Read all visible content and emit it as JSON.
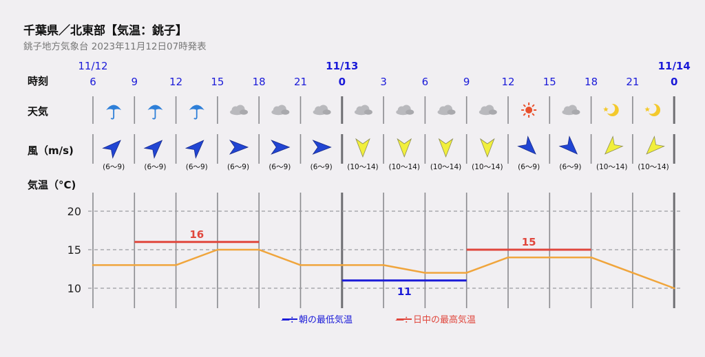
{
  "header": {
    "title": "千葉県／北東部【気温：銚子】",
    "subtitle": "銚子地方気象台 2023年11月12日07時発表"
  },
  "row_labels": {
    "time": "時刻",
    "weather": "天気",
    "wind": "風（m/s)",
    "temp": "気温（°C)"
  },
  "colors": {
    "line": "#f0a53c",
    "max": "#e0463c",
    "min": "#1a1ad8",
    "time": "#1a1ad8",
    "rain_icon": "#2e7fd8",
    "cloud_icon": "#b9b9bd",
    "sun_icon": "#e8502c",
    "moon_icon": "#f3c92d",
    "wind_blue": "#2145d3",
    "wind_yellow": "#f1ef3c"
  },
  "legend": {
    "min_label": "—：朝の最低気温",
    "max_label": "—：日中の最高気温"
  },
  "chart_data": {
    "type": "line",
    "x": [
      "11/12 6",
      "11/12 9",
      "11/12 12",
      "11/12 15",
      "11/12 18",
      "11/12 21",
      "11/13 0",
      "11/13 3",
      "11/13 6",
      "11/13 9",
      "11/13 12",
      "11/13 15",
      "11/13 18",
      "11/13 21",
      "11/14 0"
    ],
    "hour_labels": [
      "6",
      "9",
      "12",
      "15",
      "18",
      "21",
      "0",
      "3",
      "6",
      "9",
      "12",
      "15",
      "18",
      "21",
      "0"
    ],
    "date_labels": [
      {
        "index": 0,
        "text": "11/12"
      },
      {
        "index": 6,
        "text": "11/13"
      },
      {
        "index": 14,
        "text": "11/14"
      }
    ],
    "series": [
      {
        "values": [
          13,
          13,
          13,
          15,
          15,
          13,
          13,
          13,
          12,
          12,
          14,
          14,
          14,
          12,
          10
        ]
      }
    ],
    "ylim": [
      8,
      22
    ],
    "yticks": [
      10,
      15,
      20
    ],
    "ytick_labels": [
      "10",
      "15",
      "20"
    ],
    "grid": true,
    "weather": [
      "rain",
      "rain",
      "rain",
      "cloud",
      "cloud",
      "cloud",
      "cloud",
      "cloud",
      "cloud",
      "cloud",
      "sun",
      "cloud",
      "moon",
      "moon"
    ],
    "wind": [
      {
        "dir": "SW",
        "speed": "(6～9)"
      },
      {
        "dir": "SW",
        "speed": "(6～9)"
      },
      {
        "dir": "SW",
        "speed": "(6～9)"
      },
      {
        "dir": "W",
        "speed": "(6～9)"
      },
      {
        "dir": "W",
        "speed": "(6～9)"
      },
      {
        "dir": "W",
        "speed": "(6～9)"
      },
      {
        "dir": "N",
        "speed": "(10～14)"
      },
      {
        "dir": "N",
        "speed": "(10～14)"
      },
      {
        "dir": "N",
        "speed": "(10～14)"
      },
      {
        "dir": "N",
        "speed": "(10～14)"
      },
      {
        "dir": "NW",
        "speed": "(6～9)"
      },
      {
        "dir": "NW",
        "speed": "(6～9)"
      },
      {
        "dir": "NE",
        "speed": "(10～14)"
      },
      {
        "dir": "NE",
        "speed": "(10～14)"
      }
    ],
    "max_temps": [
      {
        "from": 1,
        "to": 4,
        "value": 16,
        "label": "16"
      },
      {
        "from": 9,
        "to": 12,
        "value": 15,
        "label": "15"
      }
    ],
    "min_temps": [
      {
        "from": 6,
        "to": 9,
        "value": 11,
        "label": "11"
      }
    ]
  }
}
